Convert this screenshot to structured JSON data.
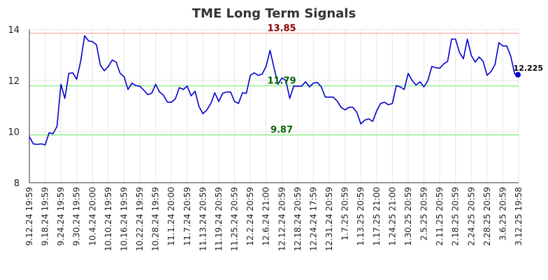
{
  "chart_data": {
    "type": "line",
    "title": "TME Long Term Signals",
    "xlabel": "",
    "ylabel": "",
    "ylim": [
      8,
      14
    ],
    "yticks": [
      "8",
      "10",
      "12",
      "14"
    ],
    "grid": true,
    "x_tick_labels": [
      "9.12.24 19:59",
      "9.18.24 19:59",
      "9.24.24 19:59",
      "9.30.24 19:59",
      "10.4.24 20:00",
      "10.10.24 19:59",
      "10.16.24 19:59",
      "10.22.24 19:59",
      "10.28.24 19:59",
      "11.1.24 20:00",
      "11.7.24 20:59",
      "11.13.24 20:59",
      "11.19.24 20:59",
      "11.25.24 20:59",
      "12.2.24 20:59",
      "12.6.24 21:00",
      "12.12.24 20:59",
      "12.18.24 20:59",
      "12.24.24 17:59",
      "12.31.24 20:59",
      "1.7.25 20:59",
      "1.13.25 20:59",
      "1.17.25 21:00",
      "1.24.25 21:00",
      "1.30.25 20:59",
      "2.5.25 20:59",
      "2.11.25 20:59",
      "2.18.25 20:59",
      "2.24.25 20:59",
      "2.28.25 20:59",
      "3.6.25 20:59",
      "3.12.25 19:58"
    ],
    "series": [
      {
        "name": "",
        "color": "#0000cc",
        "values": [
          9.8,
          9.52,
          9.5,
          9.52,
          9.48,
          9.95,
          9.92,
          10.2,
          11.85,
          11.3,
          12.28,
          12.3,
          12.05,
          12.75,
          13.75,
          13.55,
          13.52,
          13.4,
          12.6,
          12.38,
          12.55,
          12.8,
          12.72,
          12.28,
          12.15,
          11.65,
          11.9,
          11.8,
          11.78,
          11.62,
          11.45,
          11.5,
          11.85,
          11.55,
          11.42,
          11.15,
          11.15,
          11.28,
          11.72,
          11.65,
          11.78,
          11.4,
          11.58,
          10.98,
          10.7,
          10.85,
          11.1,
          11.52,
          11.18,
          11.5,
          11.55,
          11.55,
          11.18,
          11.1,
          11.52,
          11.5,
          12.2,
          12.3,
          12.2,
          12.25,
          12.55,
          13.18,
          12.5,
          11.85,
          12.1,
          12.0,
          11.3,
          11.78,
          11.78,
          11.78,
          11.95,
          11.75,
          11.9,
          11.92,
          11.75,
          11.35,
          11.35,
          11.35,
          11.2,
          10.95,
          10.85,
          10.95,
          10.95,
          10.75,
          10.3,
          10.45,
          10.5,
          10.4,
          10.8,
          11.1,
          11.15,
          11.05,
          11.1,
          11.8,
          11.75,
          11.65,
          12.28,
          12.0,
          11.82,
          11.95,
          11.75,
          12.0,
          12.55,
          12.5,
          12.48,
          12.65,
          12.75,
          13.62,
          13.62,
          13.1,
          12.85,
          13.62,
          12.98,
          12.72,
          12.92,
          12.75,
          12.2,
          12.35,
          12.62,
          13.48,
          13.35,
          13.35,
          12.95,
          12.25,
          12.225
        ]
      }
    ],
    "reference_lines": [
      {
        "value": 13.85,
        "label": "13.85",
        "line_color": "#ffb3b3",
        "label_color": "#8b0000"
      },
      {
        "value": 11.79,
        "label": "11.79",
        "line_color": "#90ee90",
        "label_color": "#006400"
      },
      {
        "value": 9.87,
        "label": "9.87",
        "line_color": "#90ee90",
        "label_color": "#006400"
      }
    ],
    "last_value_label": "12.225",
    "last_point_color": "#0000cc"
  }
}
